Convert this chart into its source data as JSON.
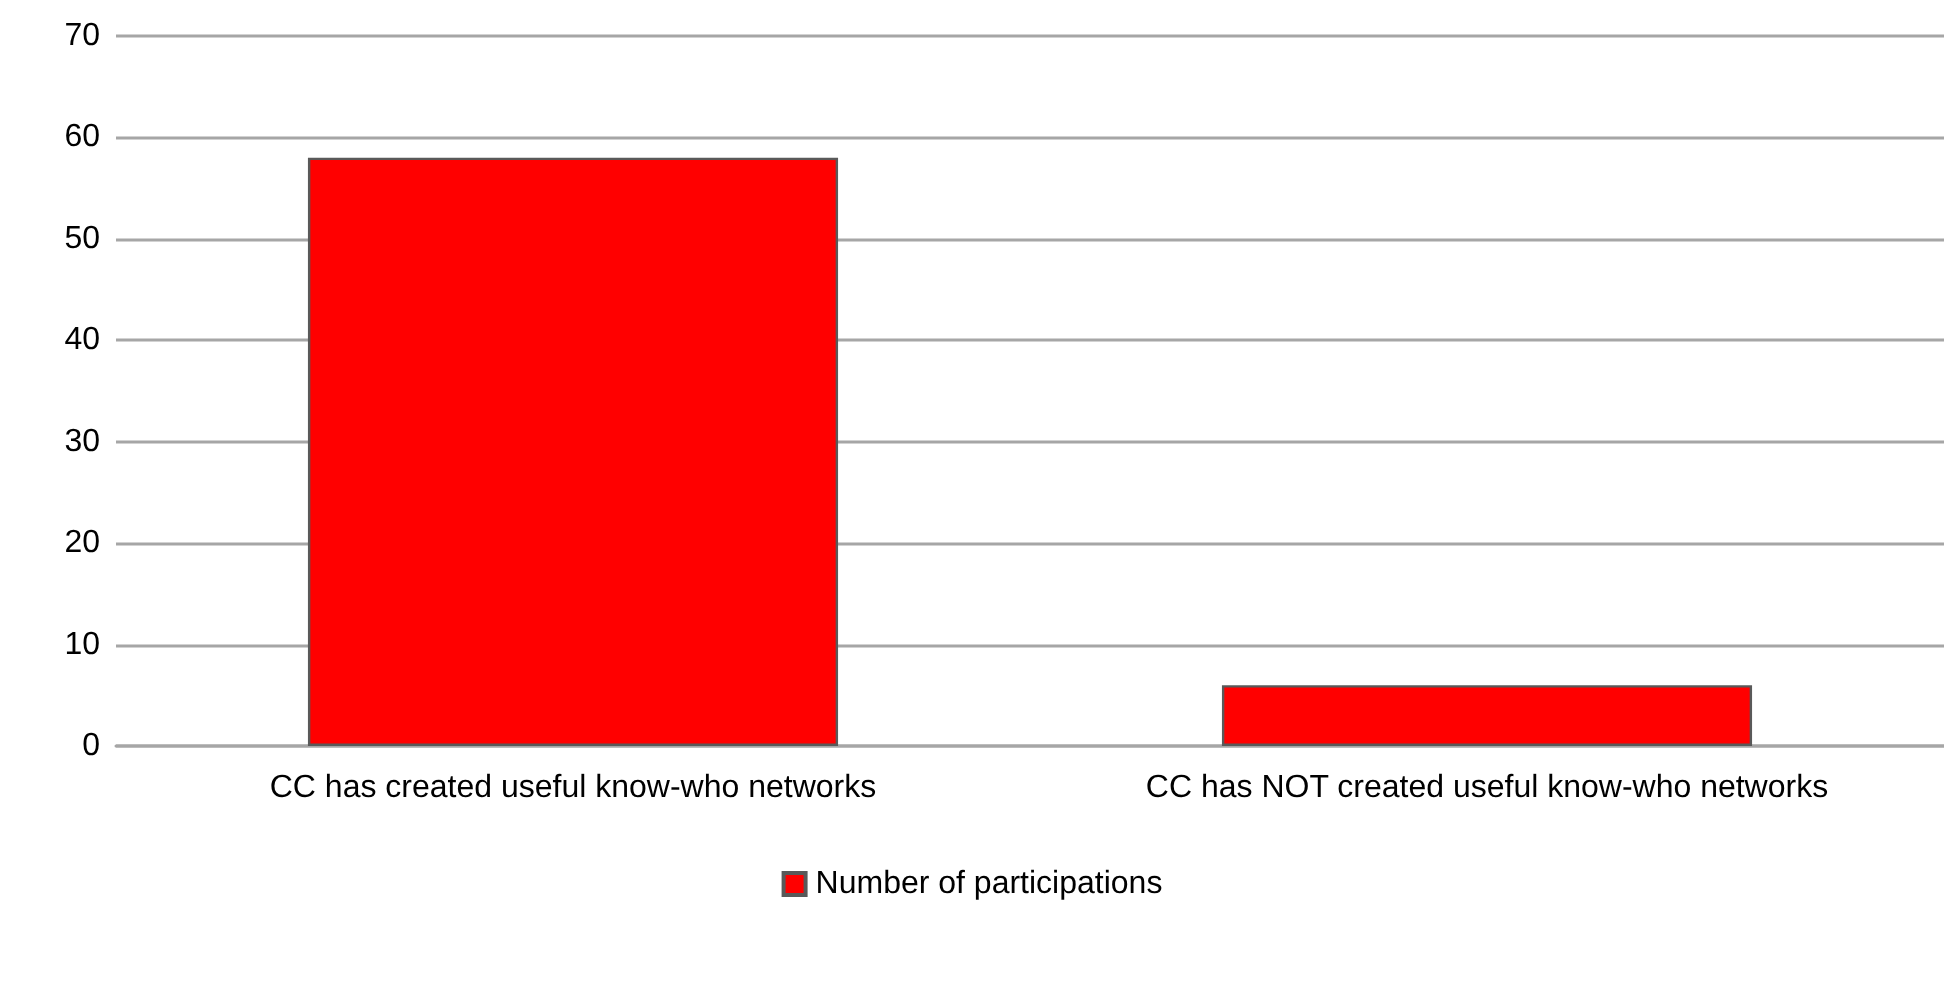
{
  "chart_data": {
    "type": "bar",
    "categories": [
      "CC has created useful know-who networks",
      "CC has NOT created useful know-who networks"
    ],
    "series": [
      {
        "name": "Number of participations",
        "color": "#ff0000",
        "values": [
          58,
          6
        ]
      }
    ],
    "ylim": [
      0,
      70
    ],
    "yticks": [
      0,
      10,
      20,
      30,
      40,
      50,
      60,
      70
    ],
    "grid": "y",
    "legend": "bottom"
  }
}
